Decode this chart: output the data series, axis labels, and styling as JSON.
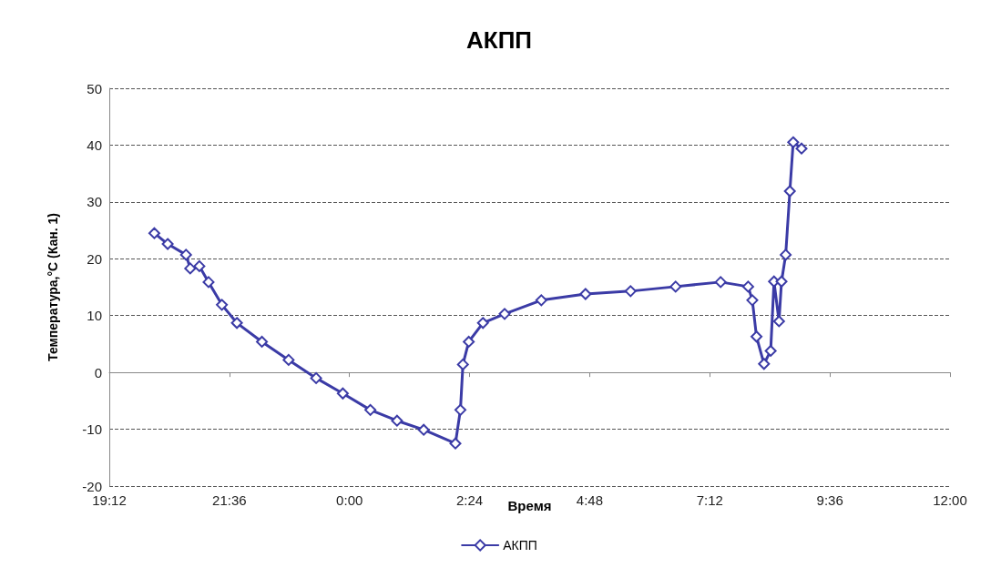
{
  "chart_data": {
    "type": "line",
    "title": "АКПП",
    "xlabel": "Время",
    "ylabel": "Температура,°C (Кан. 1)",
    "x": [
      "2000-01-01T20:06",
      "2000-01-01T20:22",
      "2000-01-01T20:44",
      "2000-01-01T20:49",
      "2000-01-01T21:00",
      "2000-01-01T21:11",
      "2000-01-01T21:27",
      "2000-01-01T21:45",
      "2000-01-01T22:15",
      "2000-01-01T22:47",
      "2000-01-01T23:20",
      "2000-01-01T23:52",
      "2000-01-02T00:25",
      "2000-01-02T00:57",
      "2000-01-02T01:29",
      "2000-01-02T02:07",
      "2000-01-02T02:13",
      "2000-01-02T02:16",
      "2000-01-02T02:23",
      "2000-01-02T02:40",
      "2000-01-02T03:06",
      "2000-01-02T03:50",
      "2000-01-02T04:43",
      "2000-01-02T05:37",
      "2000-01-02T06:31",
      "2000-01-02T07:25",
      "2000-01-02T07:58",
      "2000-01-02T08:03",
      "2000-01-02T08:08",
      "2000-01-02T08:17",
      "2000-01-02T08:25",
      "2000-01-02T08:29",
      "2000-01-02T08:35",
      "2000-01-02T08:38",
      "2000-01-02T08:43",
      "2000-01-02T08:48",
      "2000-01-02T08:52",
      "2000-01-02T09:02"
    ],
    "series": [
      {
        "name": "АКПП",
        "color": "#3b3ba6",
        "values": [
          24.5,
          22.6,
          20.7,
          18.3,
          18.7,
          15.9,
          11.9,
          8.7,
          5.4,
          2.2,
          -1.0,
          -3.7,
          -6.6,
          -8.5,
          -10.1,
          -12.5,
          -6.6,
          1.4,
          5.4,
          8.7,
          10.3,
          12.7,
          13.8,
          14.3,
          15.1,
          15.9,
          15.1,
          12.7,
          6.3,
          1.5,
          3.8,
          16.0,
          9.0,
          16.0,
          20.7,
          31.9,
          40.5,
          39.4
        ]
      }
    ],
    "xlim": [
      "2000-01-01T19:12",
      "2000-01-02T12:00"
    ],
    "xticks": [
      {
        "value": "2000-01-01T19:12",
        "label": "19:12"
      },
      {
        "value": "2000-01-01T21:36",
        "label": "21:36"
      },
      {
        "value": "2000-01-02T00:00",
        "label": "0:00"
      },
      {
        "value": "2000-01-02T02:24",
        "label": "2:24"
      },
      {
        "value": "2000-01-02T04:48",
        "label": "4:48"
      },
      {
        "value": "2000-01-02T07:12",
        "label": "7:12"
      },
      {
        "value": "2000-01-02T09:36",
        "label": "9:36"
      },
      {
        "value": "2000-01-02T12:00",
        "label": "12:00"
      }
    ],
    "ylim": [
      -20,
      50
    ],
    "yticks": [
      -20,
      -10,
      0,
      10,
      20,
      30,
      40,
      50
    ],
    "grid": "y",
    "legend": "bottom",
    "marker": "diamond",
    "line_style": "solid"
  }
}
